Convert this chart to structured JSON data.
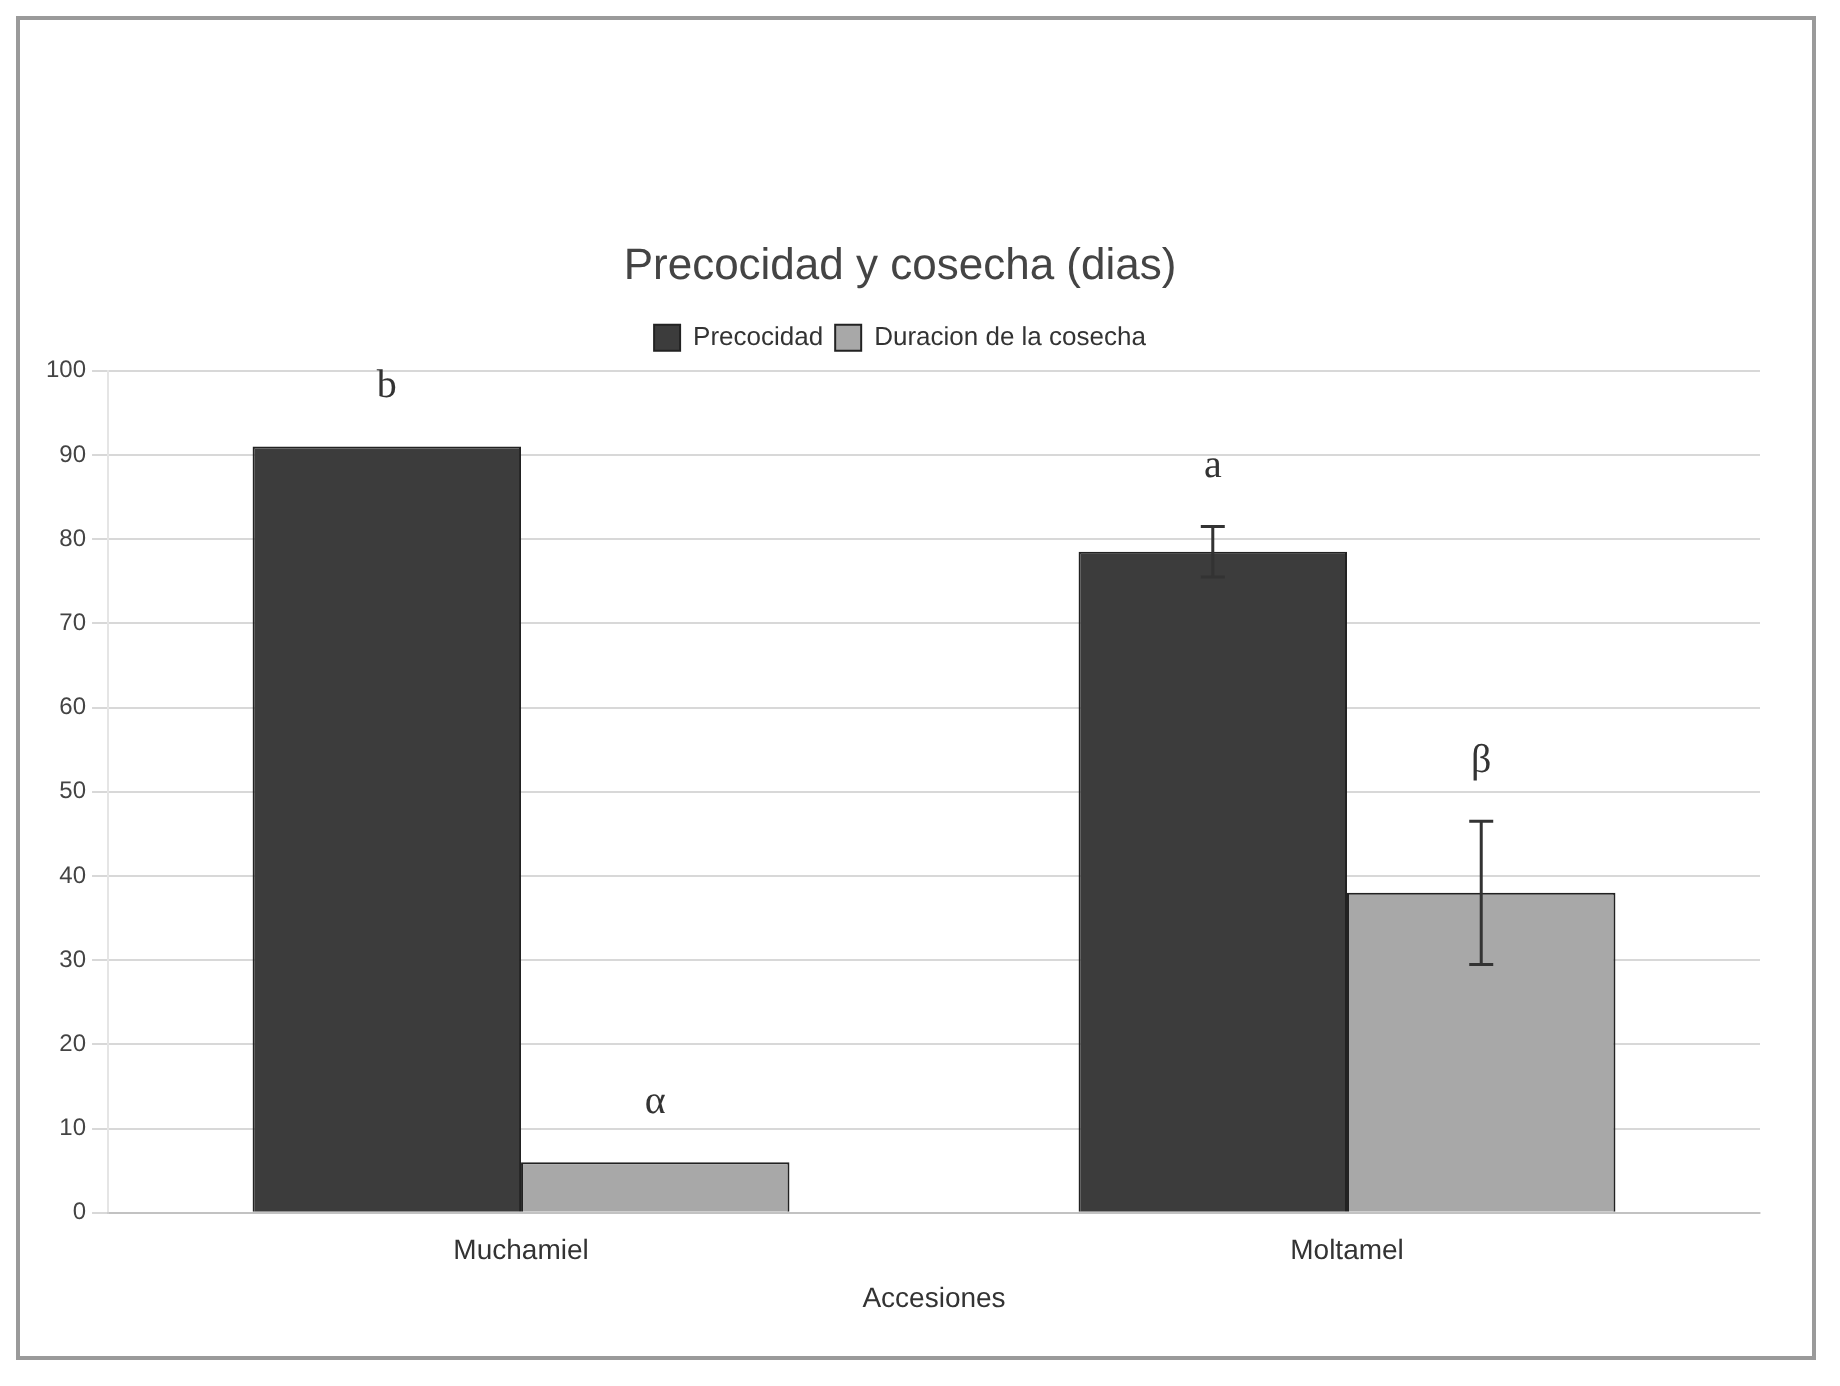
{
  "chart_data": {
    "type": "bar",
    "title": "Precocidad y cosecha (dias)",
    "xlabel": "Accesiones",
    "categories": [
      "Muchamiel",
      "Moltamel"
    ],
    "series": [
      {
        "name": "Precocidad",
        "color": "#3c3c3c",
        "values": [
          91,
          78.5
        ],
        "errors": [
          null,
          3
        ]
      },
      {
        "name": "Duracion de la cosecha",
        "color": "#a8a8a8",
        "values": [
          6,
          38
        ],
        "errors": [
          null,
          8.5
        ]
      }
    ],
    "ylim": [
      0,
      100
    ],
    "yticks": [
      0,
      10,
      20,
      30,
      40,
      50,
      60,
      70,
      80,
      90,
      100
    ],
    "grid": "y",
    "legend": "top",
    "annotations": [
      "b",
      "α",
      "a",
      "β"
    ]
  }
}
